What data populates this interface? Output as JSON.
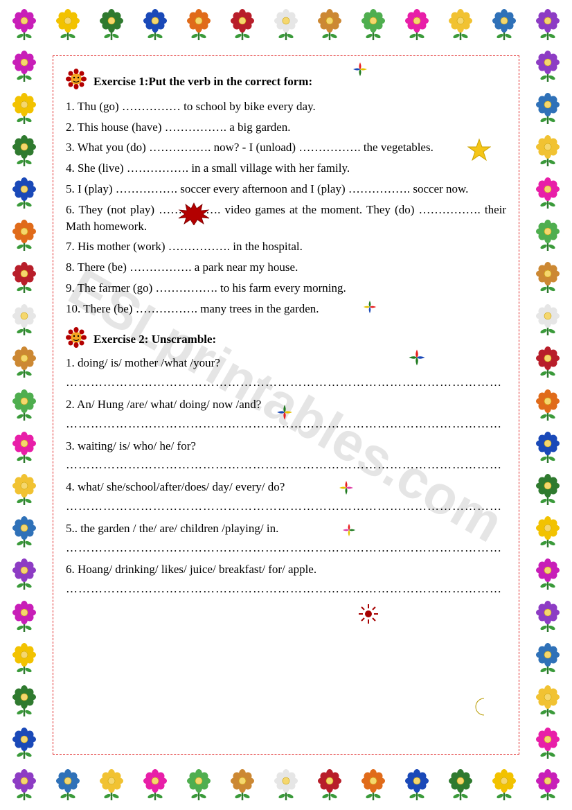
{
  "watermark": "ESLprintables.com",
  "exercise1": {
    "title": "Exercise 1:Put the verb in the correct form:",
    "items": [
      "1. Thu (go) ……………  to school by bike every day.",
      "2. This house (have) ……………. a big garden.",
      "3. What you (do) ……………. now?    -    I (unload) ……………. the vegetables.",
      "4. She (live) ……………. in a small village with her family.",
      "5. I (play) ……………. soccer every afternoon and I (play) ……………. soccer now.",
      "6. They (not play) ……………. video games at the moment. They (do) ……………. their  Math  homework.",
      "7. His mother (work) ……………. in the hospital.",
      "8. There (be) ……………. a park near my house.",
      "9. The farmer (go) ……………. to his farm every morning.",
      "10. There (be) ……………. many trees in the garden."
    ]
  },
  "exercise2": {
    "title": "Exercise 2: Unscramble:",
    "items": [
      "1. doing/ is/ mother /what /your?",
      "2. An/  Hung /are/  what/ doing/ now /and?",
      "3. waiting/ is/ who/ he/ for?",
      "4. what/ she/school/after/does/ day/ every/ do?",
      "5.. the garden / the/ are/ children /playing/ in.",
      "6. Hoang/ drinking/ likes/ juice/ breakfast/ for/ apple."
    ],
    "answer_line": "……………………………………………………………………………………………"
  },
  "border": {
    "top_count": 13,
    "bottom_count": 13,
    "side_count": 17,
    "colors": [
      "#c81eb8",
      "#f2c200",
      "#2f7a2f",
      "#1a49b8",
      "#e06b1a",
      "#b81e2a",
      "#e6e6e6",
      "#cc8833",
      "#4fae4f",
      "#e81ea8",
      "#f1c232",
      "#2f71b8",
      "#8d3cc4"
    ]
  },
  "decorations": {
    "star_color": "#f5c518",
    "burst_fill": "#b30000",
    "sun_fill": "#a60000",
    "moon_fill": "#e6c200",
    "floret_colors": [
      "#1f7a1f",
      "#1a49b8",
      "#e81e1e",
      "#e6c200"
    ]
  }
}
